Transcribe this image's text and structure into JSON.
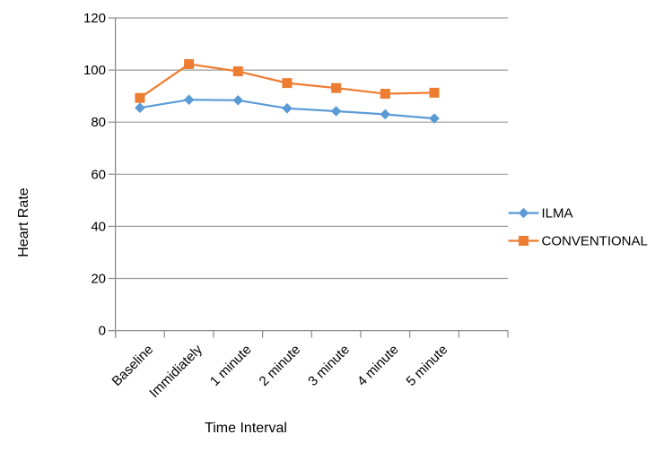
{
  "chart_data": {
    "type": "line",
    "title": "",
    "xlabel": "Time Interval",
    "ylabel": "Heart Rate",
    "categories": [
      "Baseline",
      "Immidiately",
      "1 minute",
      "2 minute",
      "3 minute",
      "4 minute",
      "5 minute"
    ],
    "series": [
      {
        "name": "ILMA",
        "color": "#5B9BD5",
        "marker": "diamond",
        "values": [
          85.5,
          88.6,
          88.4,
          85.3,
          84.2,
          83.0,
          81.4
        ]
      },
      {
        "name": "CONVENTIONAL",
        "color": "#ED7D31",
        "marker": "square",
        "values": [
          89.3,
          102.3,
          99.5,
          95.0,
          93.1,
          90.9,
          91.3
        ]
      }
    ],
    "ylim": [
      0,
      120
    ],
    "yticks": [
      0,
      20,
      40,
      60,
      80,
      100,
      120
    ],
    "grid": "horizontal",
    "legend_position": "right",
    "x_label_rotation": -45,
    "extra_x_slots": 1
  },
  "colors": {
    "background": "#FFFFFF",
    "gridline": "#9C9C9C",
    "axis": "#8C8C8C",
    "text": "#000000"
  }
}
